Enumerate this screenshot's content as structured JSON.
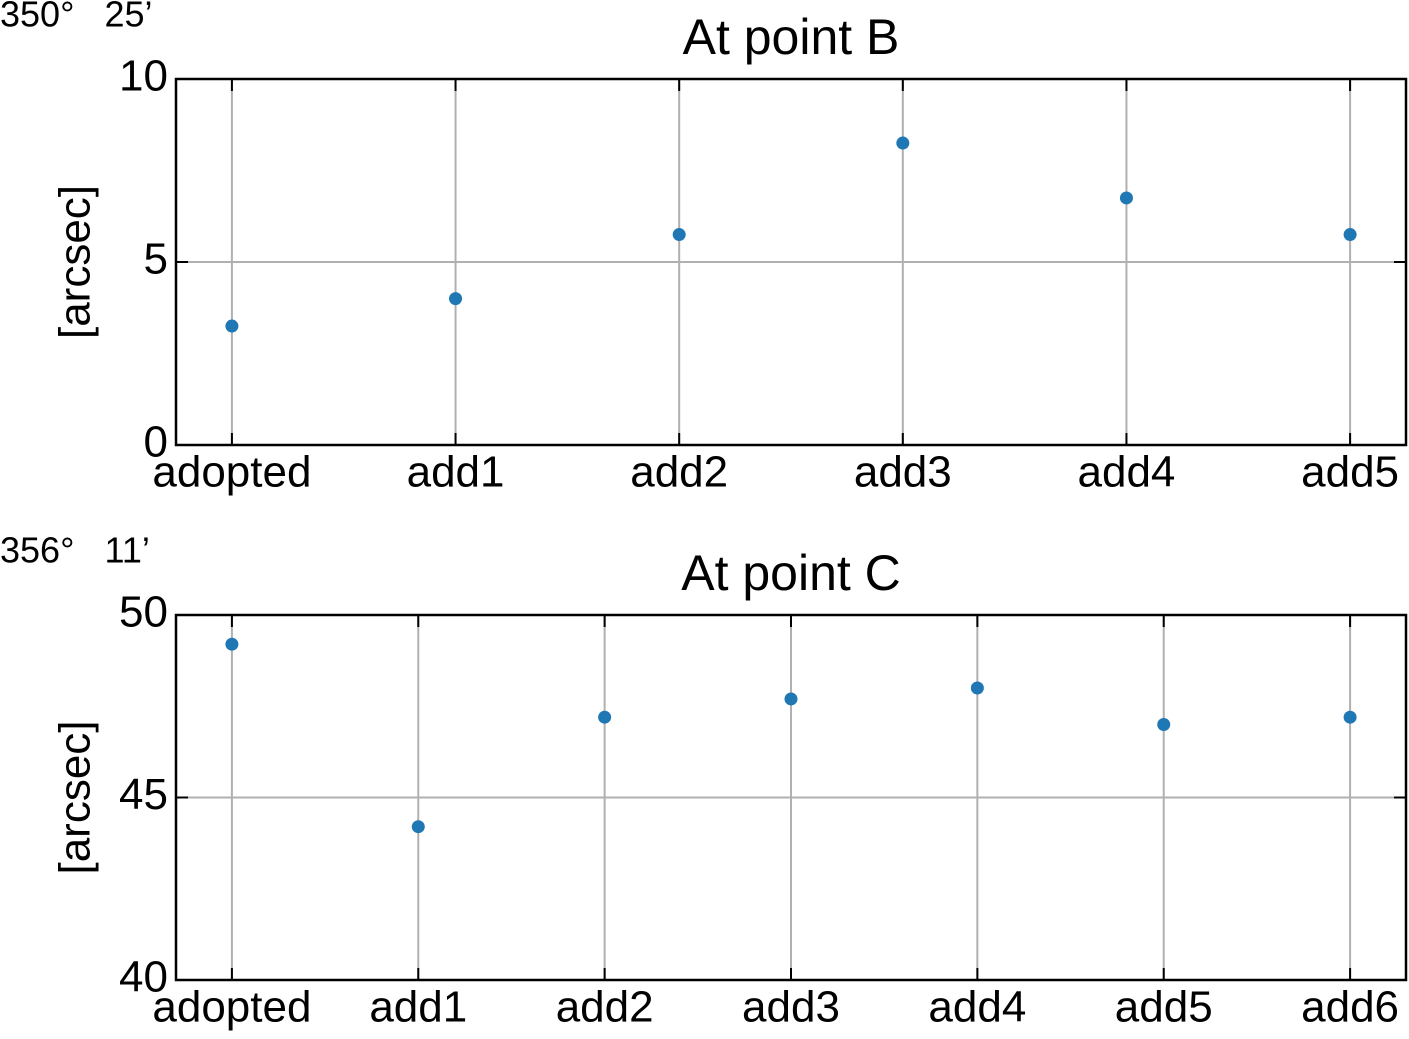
{
  "chart_data": [
    {
      "type": "scatter",
      "annotation": "350°   25’",
      "title": "At point B",
      "ylabel": "[arcsec]",
      "categories": [
        "adopted",
        "add1",
        "add2",
        "add3",
        "add4",
        "add5"
      ],
      "values": [
        3.25,
        4.0,
        5.75,
        8.25,
        6.75,
        5.75
      ],
      "color": "#1f77b4",
      "ylim": [
        0,
        10
      ],
      "yticks": [
        0,
        5,
        10
      ],
      "grid": true
    },
    {
      "type": "scatter",
      "annotation": "356°   11’",
      "title": "At point C",
      "ylabel": "[arcsec]",
      "categories": [
        "adopted",
        "add1",
        "add2",
        "add3",
        "add4",
        "add5",
        "add6"
      ],
      "values": [
        49.2,
        44.2,
        47.2,
        47.7,
        48.0,
        47.0,
        47.2
      ],
      "color": "#1f77b4",
      "ylim": [
        40,
        50
      ],
      "yticks": [
        40,
        45,
        50
      ],
      "grid": true
    }
  ]
}
